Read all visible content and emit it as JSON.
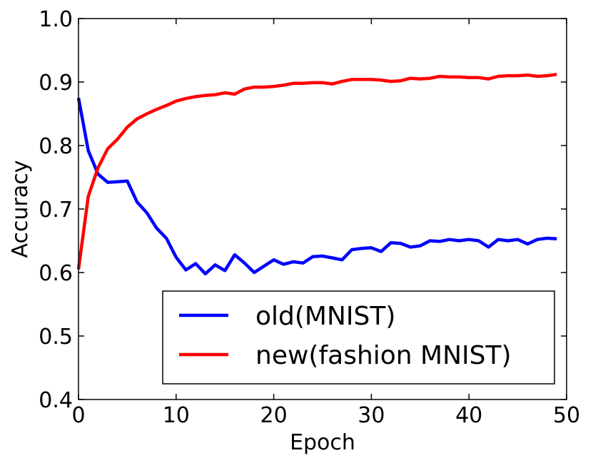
{
  "chart_data": {
    "type": "line",
    "title": "",
    "xlabel": "Epoch",
    "ylabel": "Accuracy",
    "xlim": [
      0,
      50
    ],
    "ylim": [
      0.4,
      1.0
    ],
    "xticks": [
      0,
      10,
      20,
      30,
      40,
      50
    ],
    "yticks": [
      0.4,
      0.5,
      0.6,
      0.7,
      0.8,
      0.9,
      1.0
    ],
    "xtick_labels": [
      "0",
      "10",
      "20",
      "30",
      "40",
      "50"
    ],
    "ytick_labels": [
      "0.4",
      "0.5",
      "0.6",
      "0.7",
      "0.8",
      "0.9",
      "1.0"
    ],
    "grid": false,
    "legend_position": "lower-right",
    "x": [
      0,
      1,
      2,
      3,
      4,
      5,
      6,
      7,
      8,
      9,
      10,
      11,
      12,
      13,
      14,
      15,
      16,
      17,
      18,
      19,
      20,
      21,
      22,
      23,
      24,
      25,
      26,
      27,
      28,
      29,
      30,
      31,
      32,
      33,
      34,
      35,
      36,
      37,
      38,
      39,
      40,
      41,
      42,
      43,
      44,
      45,
      46,
      47,
      48,
      49
    ],
    "series": [
      {
        "name": "old(MNIST)",
        "color": "#0000ff",
        "values": [
          0.875,
          0.792,
          0.755,
          0.742,
          0.743,
          0.744,
          0.711,
          0.694,
          0.67,
          0.654,
          0.624,
          0.604,
          0.614,
          0.598,
          0.612,
          0.603,
          0.628,
          0.615,
          0.6,
          0.61,
          0.62,
          0.613,
          0.617,
          0.615,
          0.625,
          0.626,
          0.623,
          0.62,
          0.636,
          0.638,
          0.639,
          0.633,
          0.647,
          0.646,
          0.64,
          0.642,
          0.65,
          0.649,
          0.652,
          0.65,
          0.652,
          0.65,
          0.64,
          0.652,
          0.65,
          0.652,
          0.645,
          0.652,
          0.654,
          0.653
        ]
      },
      {
        "name": "new(fashion MNIST)",
        "color": "#ff0000",
        "values": [
          0.605,
          0.72,
          0.765,
          0.795,
          0.81,
          0.829,
          0.842,
          0.85,
          0.857,
          0.863,
          0.87,
          0.874,
          0.877,
          0.879,
          0.88,
          0.883,
          0.881,
          0.889,
          0.892,
          0.892,
          0.893,
          0.895,
          0.898,
          0.898,
          0.899,
          0.899,
          0.897,
          0.901,
          0.904,
          0.904,
          0.904,
          0.903,
          0.901,
          0.902,
          0.906,
          0.905,
          0.906,
          0.909,
          0.908,
          0.908,
          0.907,
          0.907,
          0.905,
          0.909,
          0.91,
          0.91,
          0.911,
          0.909,
          0.91,
          0.912
        ]
      }
    ]
  }
}
